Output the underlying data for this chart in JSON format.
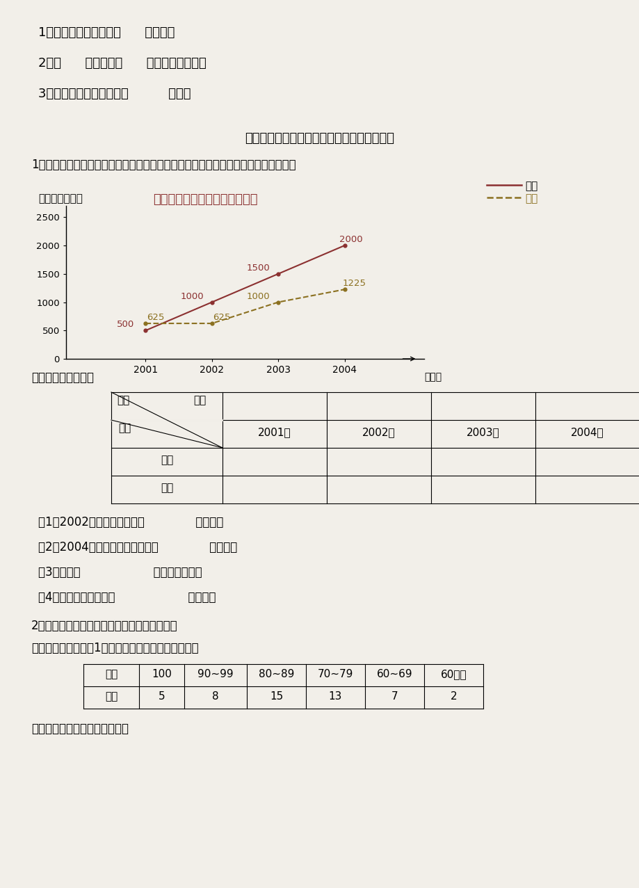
{
  "page_bg": "#f2efe9",
  "top_questions": [
    "1．产量增加最多的是（      ）月份。",
    "2．（      ）月份与（      ）月份产量相同。",
    "3．六个月一共生产汽车（          ）辆。"
  ],
  "section_title": "探究拓展能力强化训练与应用综合能力的养成",
  "q1_intro": "1．（图表题）根据统计图完成统计填空。下图是某工厂工业产值增长的情况统计图：",
  "chart_title": "某工厂工业产值增长情况统计图",
  "chart_unit": "（单位：万元）",
  "chart_xlabel": "（年）",
  "legend_factory1_label": "一厂",
  "legend_factory2_label": "二厂",
  "years": [
    2001,
    2002,
    2003,
    2004
  ],
  "factory1_values": [
    500,
    1000,
    1500,
    2000
  ],
  "factory2_values": [
    625,
    625,
    1000,
    1225
  ],
  "factory1_color": "#8B3030",
  "factory2_color": "#8B7020",
  "ylim_max": 2700,
  "yticks": [
    0,
    500,
    1000,
    1500,
    2000,
    2500
  ],
  "table_header_years": [
    "2001年",
    "2002年",
    "2003年",
    "2004年"
  ],
  "table_factory_rows": [
    "一厂",
    "二厂"
  ],
  "q_items": [
    "（1）2002年两厂总产量共（              ）万元，",
    "（2）2004年一厂比二厂产值多（              ）万元，",
    "（3）二厂（                    ）年增长最快。",
    "（4）一厂四年总产值（                    ）万元。"
  ],
  "q2_intro": "2、（情境题）根据统计表完成统计图及问题。",
  "q2_desc": "下面是五星小学四（1）班一次数学考试成绩统计表：",
  "score_headers": [
    "分数",
    "100",
    "90~99",
    "80~89",
    "70~79",
    "60~69",
    "60以下"
  ],
  "score_values": [
    "人数",
    "5",
    "8",
    "15",
    "13",
    "7",
    "2"
  ],
  "q2_end": "根据统计表制成合适的统计图。",
  "table_label": "根据此图编制统计表"
}
